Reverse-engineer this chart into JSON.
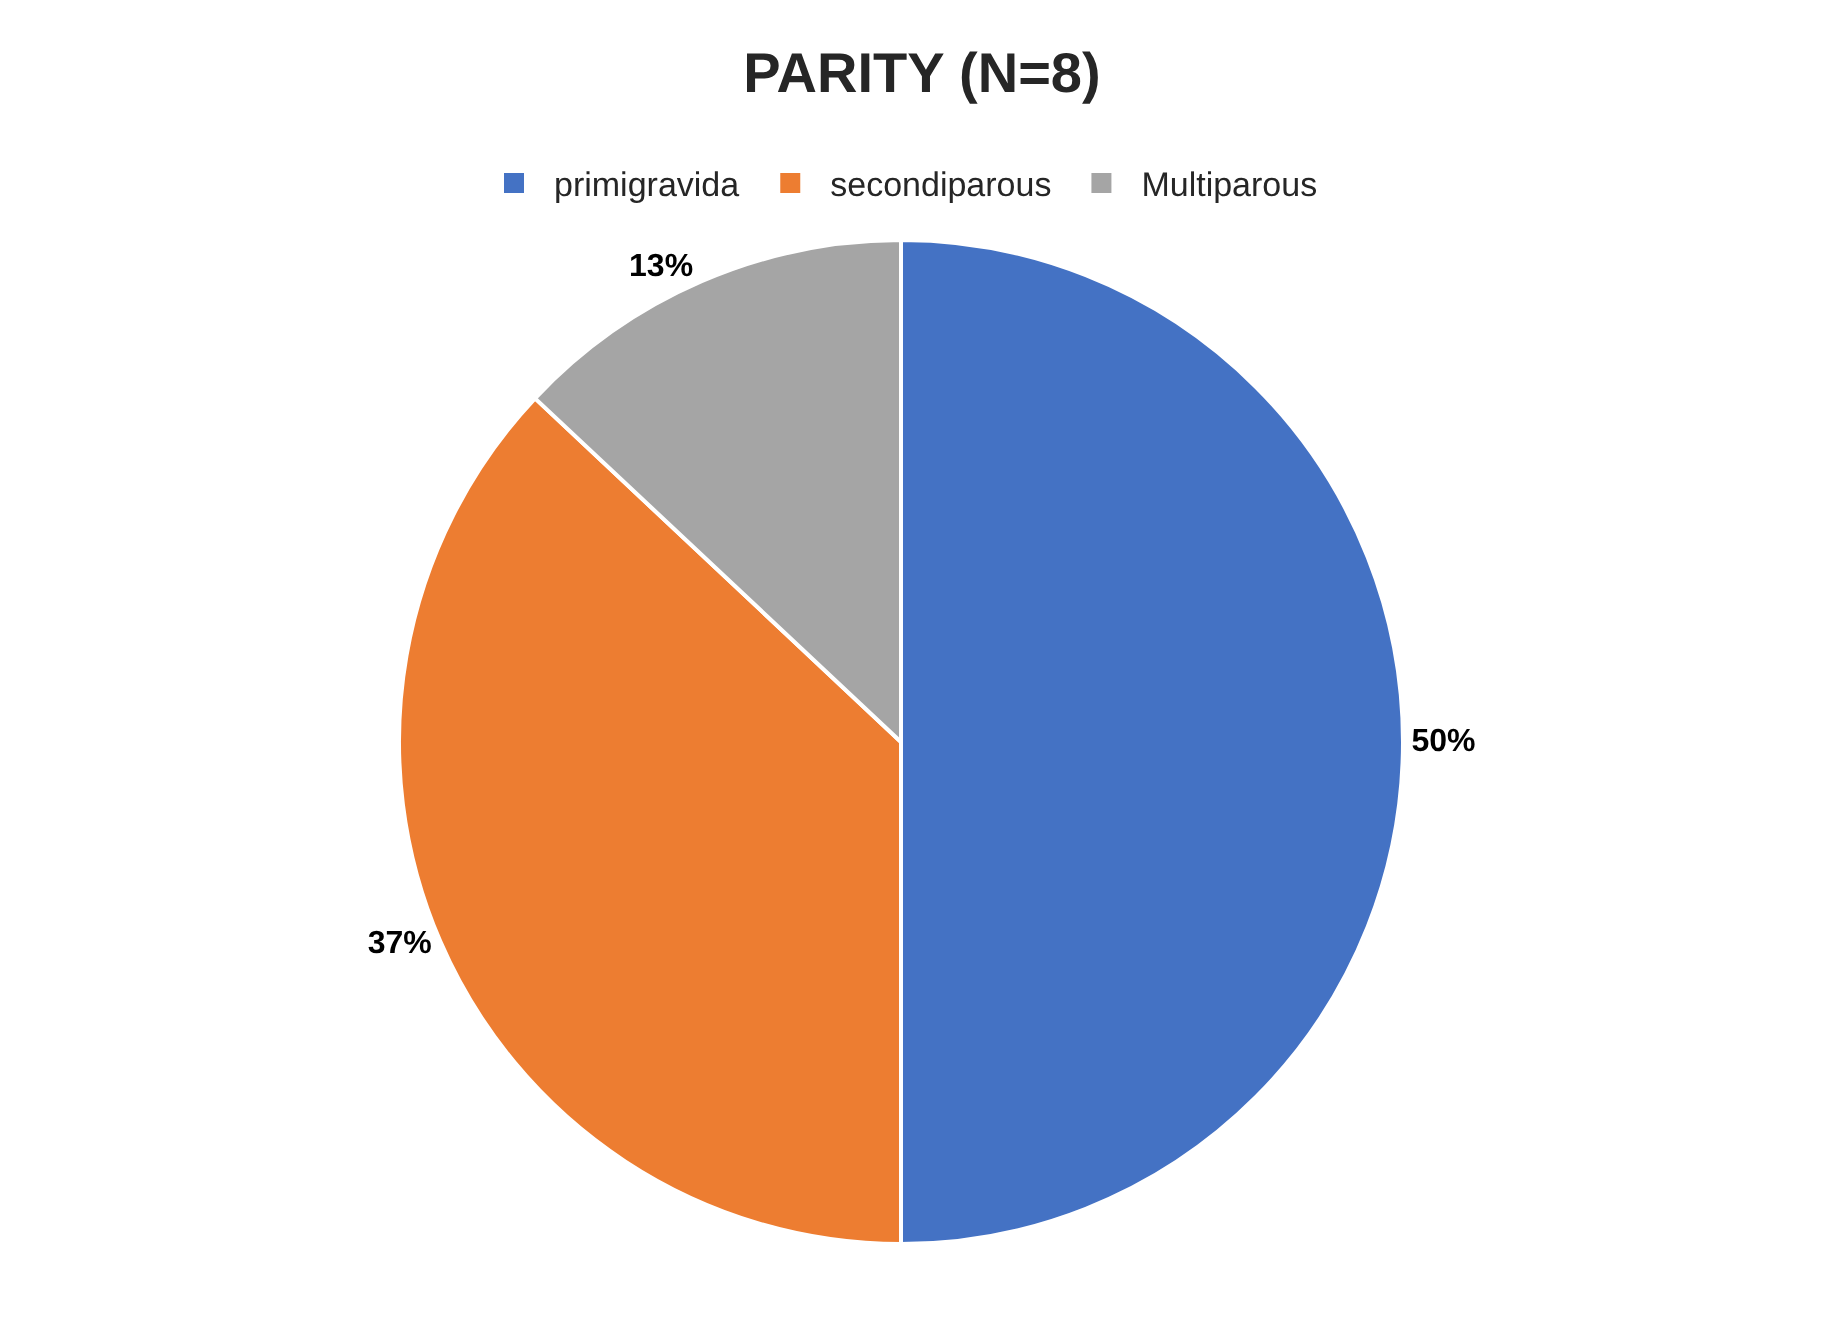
{
  "chart_data": {
    "type": "pie",
    "title": "PARITY (N=8)",
    "categories": [
      "primigravida",
      "secondiparous",
      "Multiparous"
    ],
    "values": [
      50,
      37,
      13
    ],
    "colors": [
      "#4472c4",
      "#ed7d31",
      "#a5a5a5"
    ],
    "value_labels": [
      "50%",
      "37%",
      "13%"
    ],
    "legend": "top"
  }
}
